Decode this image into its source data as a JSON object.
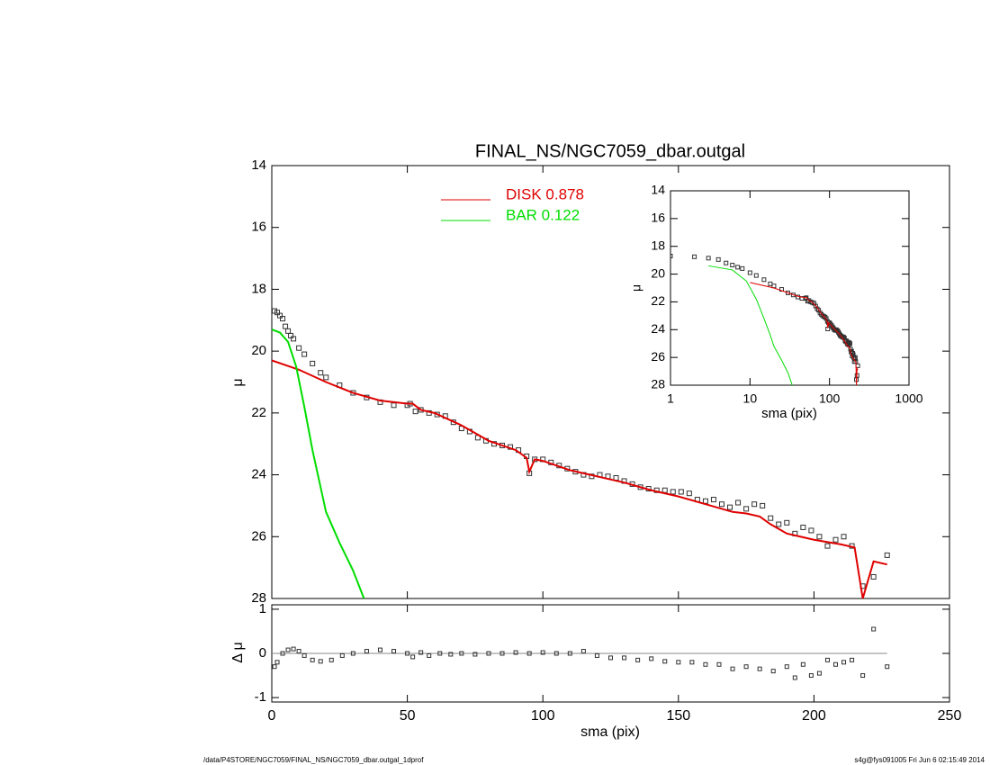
{
  "chart_data": [
    {
      "type": "line",
      "title": "FINAL_NS/NGC7059_dbar.outgal",
      "ylabel": "μ",
      "xlim": [
        0,
        250
      ],
      "ylim": [
        14,
        28
      ],
      "y_inverted": true,
      "yticks": [
        14,
        16,
        18,
        20,
        22,
        24,
        26,
        28
      ],
      "series": [
        {
          "style": "markers",
          "color": "#333333",
          "x": [
            1,
            2,
            3,
            4,
            5,
            6,
            7,
            8,
            10,
            12,
            15,
            18,
            20,
            25,
            30,
            35,
            40,
            45,
            50,
            51,
            53,
            55,
            58,
            61,
            64,
            67,
            70,
            73,
            76,
            79,
            82,
            85,
            88,
            91,
            94,
            95,
            97,
            100,
            103,
            106,
            109,
            112,
            115,
            118,
            121,
            124,
            127,
            130,
            133,
            136,
            139,
            142,
            145,
            148,
            151,
            154,
            157,
            160,
            163,
            166,
            169,
            172,
            175,
            178,
            181,
            184,
            187,
            190,
            193,
            196,
            199,
            202,
            205,
            208,
            211,
            214,
            218,
            222,
            227
          ],
          "values": [
            18.7,
            18.75,
            18.85,
            18.95,
            19.2,
            19.35,
            19.5,
            19.6,
            19.9,
            20.1,
            20.4,
            20.7,
            20.85,
            21.1,
            21.35,
            21.5,
            21.65,
            21.75,
            21.75,
            21.7,
            21.95,
            21.9,
            22.0,
            22.05,
            22.1,
            22.3,
            22.5,
            22.6,
            22.8,
            22.9,
            23.0,
            23.05,
            23.1,
            23.2,
            23.4,
            23.95,
            23.5,
            23.5,
            23.6,
            23.7,
            23.8,
            23.9,
            24.0,
            24.05,
            24.0,
            24.05,
            24.1,
            24.2,
            24.3,
            24.4,
            24.45,
            24.5,
            24.5,
            24.55,
            24.55,
            24.6,
            24.8,
            24.85,
            24.8,
            24.95,
            25.05,
            24.9,
            25.1,
            24.95,
            25.0,
            25.4,
            25.6,
            25.55,
            25.9,
            25.7,
            25.8,
            26.0,
            26.3,
            26.1,
            26.0,
            26.3,
            27.6,
            27.3,
            26.6
          ]
        },
        {
          "name": "DISK  0.878",
          "style": "line",
          "color": "#e00000",
          "x": [
            0,
            10,
            20,
            30,
            40,
            50,
            52,
            55,
            60,
            70,
            80,
            90,
            94,
            95,
            97,
            100,
            110,
            120,
            130,
            140,
            150,
            160,
            170,
            175,
            180,
            184,
            190,
            200,
            210,
            215,
            218,
            222,
            227
          ],
          "values": [
            20.3,
            20.6,
            21.0,
            21.35,
            21.6,
            21.7,
            21.7,
            21.9,
            22.0,
            22.4,
            22.9,
            23.2,
            23.45,
            23.9,
            23.5,
            23.55,
            23.85,
            24.05,
            24.25,
            24.5,
            24.7,
            24.95,
            25.2,
            25.25,
            25.35,
            25.6,
            25.9,
            26.1,
            26.25,
            26.35,
            28.0,
            26.8,
            26.9
          ]
        },
        {
          "name": "BAR  0.122",
          "style": "line",
          "color": "#00dd00",
          "x": [
            0,
            3,
            6,
            9,
            12,
            15,
            18,
            20,
            25,
            30,
            34
          ],
          "values": [
            19.3,
            19.4,
            19.7,
            20.5,
            21.8,
            23.2,
            24.4,
            25.2,
            26.2,
            27.1,
            28.0
          ]
        }
      ]
    },
    {
      "type": "scatter",
      "ylabel": "Δ μ",
      "xlabel": "sma (pix)",
      "xlim": [
        0,
        250
      ],
      "xticks": [
        0,
        50,
        100,
        150,
        200,
        250
      ],
      "ylim": [
        -1.1,
        1.1
      ],
      "yticks": [
        -1,
        0,
        1
      ],
      "color": "#333333",
      "x": [
        1,
        2,
        4,
        6,
        8,
        10,
        12,
        15,
        18,
        22,
        26,
        30,
        35,
        40,
        45,
        50,
        52,
        55,
        58,
        62,
        66,
        70,
        75,
        80,
        85,
        90,
        95,
        100,
        105,
        110,
        115,
        120,
        125,
        130,
        135,
        140,
        145,
        150,
        155,
        160,
        165,
        170,
        175,
        180,
        185,
        190,
        193,
        196,
        199,
        202,
        205,
        208,
        211,
        214,
        218,
        222,
        227
      ],
      "values": [
        -0.3,
        -0.2,
        0,
        0.08,
        0.1,
        0.05,
        -0.05,
        -0.15,
        -0.18,
        -0.15,
        -0.05,
        0,
        0.05,
        0.08,
        0.05,
        0,
        -0.08,
        0.02,
        -0.05,
        0,
        -0.02,
        0,
        -0.02,
        0,
        0,
        0.02,
        0,
        0.02,
        0,
        0,
        0.05,
        -0.05,
        -0.1,
        -0.1,
        -0.15,
        -0.12,
        -0.18,
        -0.2,
        -0.2,
        -0.25,
        -0.25,
        -0.35,
        -0.3,
        -0.35,
        -0.4,
        -0.3,
        -0.55,
        -0.25,
        -0.5,
        -0.45,
        -0.15,
        -0.25,
        -0.2,
        -0.15,
        -0.5,
        0.55,
        -0.3
      ]
    },
    {
      "type": "inset",
      "xlabel": "sma (pix)",
      "ylabel": "μ",
      "log_x": true,
      "xlim": [
        1,
        1000
      ],
      "xticks": [
        1,
        10,
        100,
        1000
      ],
      "ylim": [
        14,
        28
      ],
      "y_inverted": true,
      "yticks": [
        14,
        16,
        18,
        20,
        22,
        24,
        26,
        28
      ]
    }
  ],
  "footer": {
    "left": "/data/P4STORE/NGC7059/FINAL_NS/NGC7059_dbar.outgal_1dprof",
    "right": "s4g@fys091005  Fri Jun  6 02:15:49 2014"
  }
}
